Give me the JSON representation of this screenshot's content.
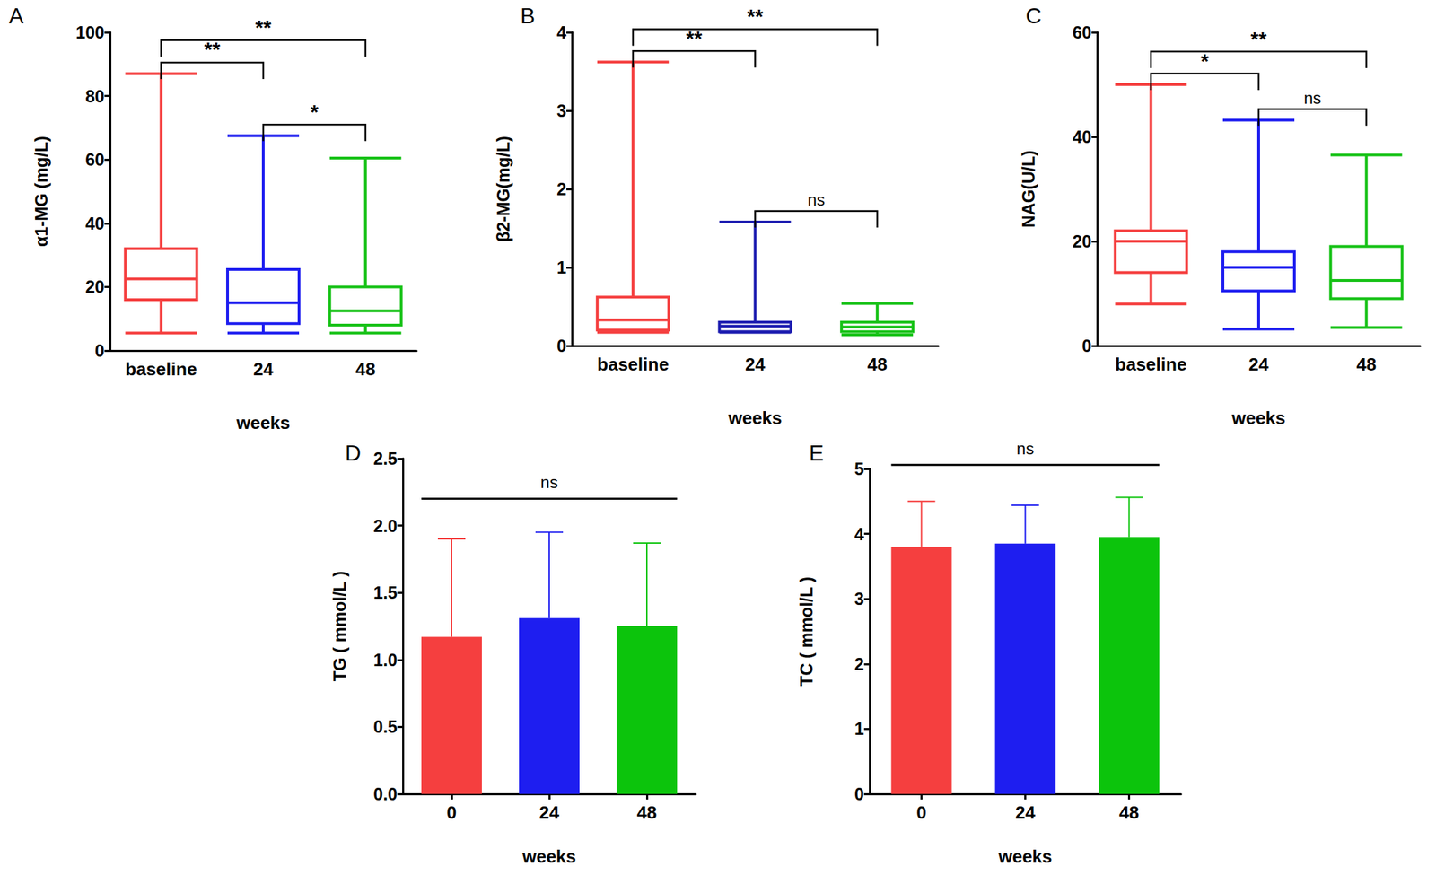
{
  "chart_data": [
    {
      "type": "boxplot",
      "title": "A",
      "x_label": "weeks",
      "y_label": "α1-MG (mg/L)",
      "categories": [
        "baseline",
        "24",
        "48"
      ],
      "boxes": [
        {
          "min": 5.5,
          "q1": 16,
          "median": 22.5,
          "q3": 32,
          "max": 87
        },
        {
          "min": 5.5,
          "q1": 8.5,
          "median": 15,
          "q3": 25.5,
          "max": 67.5
        },
        {
          "min": 5.5,
          "q1": 8,
          "median": 12.5,
          "q3": 20,
          "max": 60.5
        }
      ],
      "colors": [
        "#f53f3f",
        "#1e1ef0",
        "#17c217"
      ],
      "ylim": [
        0,
        100
      ],
      "yticks": [
        0,
        20,
        40,
        60,
        80,
        100
      ],
      "grid": false,
      "annotations": [
        {
          "from": "baseline",
          "to": "24",
          "label": "**"
        },
        {
          "from": "baseline",
          "to": "48",
          "label": "**"
        },
        {
          "from": "24",
          "to": "48",
          "label": "*"
        }
      ]
    },
    {
      "type": "boxplot",
      "title": "B",
      "x_label": "weeks",
      "y_label": "β2-MG(mg/L)",
      "categories": [
        "baseline",
        "24",
        "48"
      ],
      "boxes": [
        {
          "min": 0.17,
          "q1": 0.2,
          "median": 0.33,
          "q3": 0.62,
          "max": 3.62
        },
        {
          "min": 0.17,
          "q1": 0.18,
          "median": 0.25,
          "q3": 0.3,
          "max": 1.58
        },
        {
          "min": 0.14,
          "q1": 0.18,
          "median": 0.24,
          "q3": 0.3,
          "max": 0.54
        }
      ],
      "colors": [
        "#f53f3f",
        "#1c1cb0",
        "#17c217"
      ],
      "ylim": [
        0,
        4
      ],
      "yticks": [
        0,
        1,
        2,
        3,
        4
      ],
      "grid": false,
      "annotations": [
        {
          "from": "baseline",
          "to": "24",
          "label": "**"
        },
        {
          "from": "baseline",
          "to": "48",
          "label": "**"
        },
        {
          "from": "24",
          "to": "48",
          "label": "ns"
        }
      ]
    },
    {
      "type": "boxplot",
      "title": "C",
      "x_label": "weeks",
      "y_label": "NAG(U/L)",
      "categories": [
        "baseline",
        "24",
        "48"
      ],
      "boxes": [
        {
          "min": 8,
          "q1": 14,
          "median": 20,
          "q3": 22,
          "max": 50
        },
        {
          "min": 3.2,
          "q1": 10.5,
          "median": 15,
          "q3": 18,
          "max": 43.2
        },
        {
          "min": 3.5,
          "q1": 9,
          "median": 12.5,
          "q3": 19,
          "max": 36.5
        }
      ],
      "colors": [
        "#f53f3f",
        "#1e1ef0",
        "#17c217"
      ],
      "ylim": [
        0,
        60
      ],
      "yticks": [
        0,
        20,
        40,
        60
      ],
      "grid": false,
      "annotations": [
        {
          "from": "baseline",
          "to": "24",
          "label": "*"
        },
        {
          "from": "baseline",
          "to": "48",
          "label": "**"
        },
        {
          "from": "24",
          "to": "48",
          "label": "ns"
        }
      ]
    },
    {
      "type": "bar",
      "title": "D",
      "x_label": "weeks",
      "y_label": "TG ( mmol/L )",
      "categories": [
        "0",
        "24",
        "48"
      ],
      "values": [
        1.17,
        1.31,
        1.25
      ],
      "errors": [
        0.73,
        0.64,
        0.62
      ],
      "colors": [
        "#f53f3f",
        "#1e1ef0",
        "#0cc40c"
      ],
      "ylim": [
        0,
        2.5
      ],
      "yticks": [
        {
          "value": 0,
          "label": "0.0"
        },
        0.5,
        {
          "value": 1,
          "label": "1.0"
        },
        1.5,
        {
          "value": 2,
          "label": "2.0"
        },
        2.5
      ],
      "grid": false,
      "annotations": [
        {
          "from": "0",
          "to": "48",
          "label": "ns"
        }
      ]
    },
    {
      "type": "bar",
      "title": "E",
      "x_label": "weeks",
      "y_label": "TC ( mmol/L )",
      "categories": [
        "0",
        "24",
        "48"
      ],
      "values": [
        3.8,
        3.85,
        3.95
      ],
      "errors": [
        0.7,
        0.59,
        0.61
      ],
      "colors": [
        "#f53f3f",
        "#1e1ef0",
        "#0cc40c"
      ],
      "ylim": [
        0,
        5
      ],
      "yticks": [
        0,
        1,
        2,
        3,
        4,
        5
      ],
      "grid": false,
      "annotations": [
        {
          "from": "0",
          "to": "48",
          "label": "ns"
        }
      ]
    }
  ]
}
